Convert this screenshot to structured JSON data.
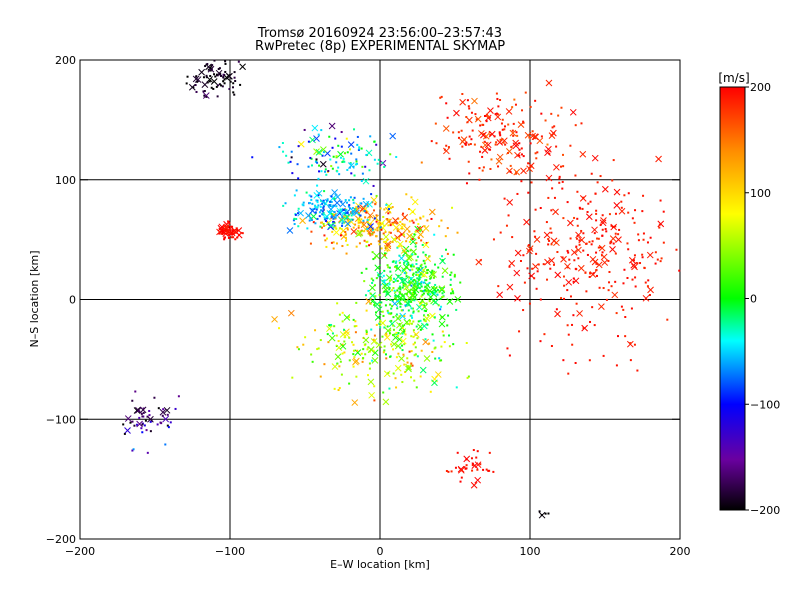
{
  "chart_data": {
    "type": "scatter",
    "title": "Tromsø 20160924 23:56:00–23:57:43",
    "subtitle": "RwPretec (8p) EXPERIMENTAL SKYMAP",
    "xlabel": "E–W location [km]",
    "ylabel": "N–S location [km]",
    "xlim": [
      -200,
      200
    ],
    "ylim": [
      -200,
      200
    ],
    "x_ticks": [
      -200,
      -100,
      0,
      100,
      200
    ],
    "y_ticks": [
      -200,
      -100,
      0,
      100,
      200
    ],
    "x_tick_labels": [
      "−200",
      "−100",
      "0",
      "100",
      "200"
    ],
    "y_tick_labels": [
      "−200",
      "−100",
      "0",
      "100",
      "200"
    ],
    "grid": true,
    "grid_lines": [
      -100,
      0,
      100
    ],
    "colorbar": {
      "label": "[m/s]",
      "range": [
        -200,
        200
      ],
      "ticks": [
        200,
        100,
        0,
        -100,
        -200
      ],
      "tick_labels": [
        "200",
        "100",
        "0",
        "−100",
        "−200"
      ],
      "colors": [
        "#000000",
        "#6a00a0",
        "#0000ff",
        "#00ffff",
        "#00ff00",
        "#ffff00",
        "#ff8c00",
        "#ff0000"
      ]
    },
    "markers": [
      "dot",
      "x"
    ],
    "clusters": [
      {
        "x": 20,
        "y": 10,
        "sx": 20,
        "sy": 25,
        "n": 420,
        "vel": 5,
        "vsd": 40
      },
      {
        "x": 0,
        "y": 60,
        "sx": 30,
        "sy": 15,
        "n": 260,
        "vel": 120,
        "vsd": 60
      },
      {
        "x": -30,
        "y": 75,
        "sx": 20,
        "sy": 10,
        "n": 170,
        "vel": -60,
        "vsd": 30
      },
      {
        "x": -30,
        "y": 120,
        "sx": 25,
        "sy": 15,
        "n": 120,
        "vel": -40,
        "vsd": 80
      },
      {
        "x": 140,
        "y": 40,
        "sx": 40,
        "sy": 55,
        "n": 320,
        "vel": 190,
        "vsd": 10
      },
      {
        "x": 80,
        "y": 140,
        "sx": 30,
        "sy": 25,
        "n": 180,
        "vel": 185,
        "vsd": 20
      },
      {
        "x": 0,
        "y": -40,
        "sx": 35,
        "sy": 25,
        "n": 230,
        "vel": 60,
        "vsd": 60
      },
      {
        "x": -100,
        "y": 57,
        "sx": 5,
        "sy": 5,
        "n": 60,
        "vel": 195,
        "vsd": 8
      },
      {
        "x": -110,
        "y": 185,
        "sx": 12,
        "sy": 10,
        "n": 80,
        "vel": -195,
        "vsd": 15
      },
      {
        "x": -155,
        "y": -100,
        "sx": 15,
        "sy": 15,
        "n": 55,
        "vel": -150,
        "vsd": 50
      },
      {
        "x": 60,
        "y": -140,
        "sx": 10,
        "sy": 10,
        "n": 35,
        "vel": 195,
        "vsd": 8
      },
      {
        "x": 110,
        "y": -180,
        "sx": 3,
        "sy": 5,
        "n": 5,
        "vel": -200,
        "vsd": 5
      }
    ]
  }
}
